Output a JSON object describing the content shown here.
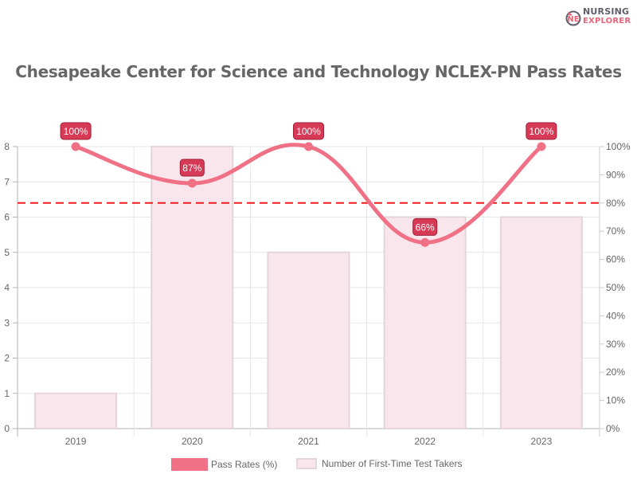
{
  "title": "Chesapeake Center for Science and Technology NCLEX-PN Pass Rates",
  "logo": {
    "line1": "NURSING",
    "line2": "EXPLORER",
    "mark": "NE"
  },
  "legend": [
    {
      "label": "Pass Rates (%)",
      "color": "#f07086",
      "type": "line"
    },
    {
      "label": "Number of First-Time Test Takers",
      "color": "#f8e6ec",
      "type": "bar"
    }
  ],
  "colors": {
    "line": "#f07086",
    "bar_fill": "#f8e6ec",
    "bar_border": "#e3d5da",
    "threshold": "#ee1c1c",
    "label_bg": "#d63a56",
    "label_text": "#ffffff",
    "axis_text": "#666666",
    "grid": "#e6e6e6"
  },
  "chart_data": {
    "type": "bar+line",
    "title": "Chesapeake Center for Science and Technology NCLEX-PN Pass Rates",
    "categories": [
      "2019",
      "2020",
      "2021",
      "2022",
      "2023"
    ],
    "series": [
      {
        "name": "Pass Rates (%)",
        "type": "line",
        "axis": "right",
        "values": [
          100,
          87,
          100,
          66,
          100
        ],
        "labels": [
          "100%",
          "87%",
          "100%",
          "66%",
          "100%"
        ]
      },
      {
        "name": "Number of First-Time Test Takers",
        "type": "bar",
        "axis": "left",
        "values": [
          1,
          8,
          5,
          6,
          6
        ]
      }
    ],
    "threshold": {
      "axis": "right",
      "value": 80,
      "style": "dashed",
      "color": "#ee1c1c"
    },
    "left_axis": {
      "ylim": [
        0,
        8
      ],
      "ticks": [
        "0",
        "1",
        "2",
        "3",
        "4",
        "5",
        "6",
        "7",
        "8"
      ]
    },
    "right_axis": {
      "ylim": [
        0,
        100
      ],
      "ticks": [
        "0%",
        "10%",
        "20%",
        "30%",
        "40%",
        "50%",
        "60%",
        "70%",
        "80%",
        "90%",
        "100%"
      ]
    },
    "xlabel": "",
    "ylabel": "",
    "grid": true,
    "legend_position": "bottom"
  }
}
